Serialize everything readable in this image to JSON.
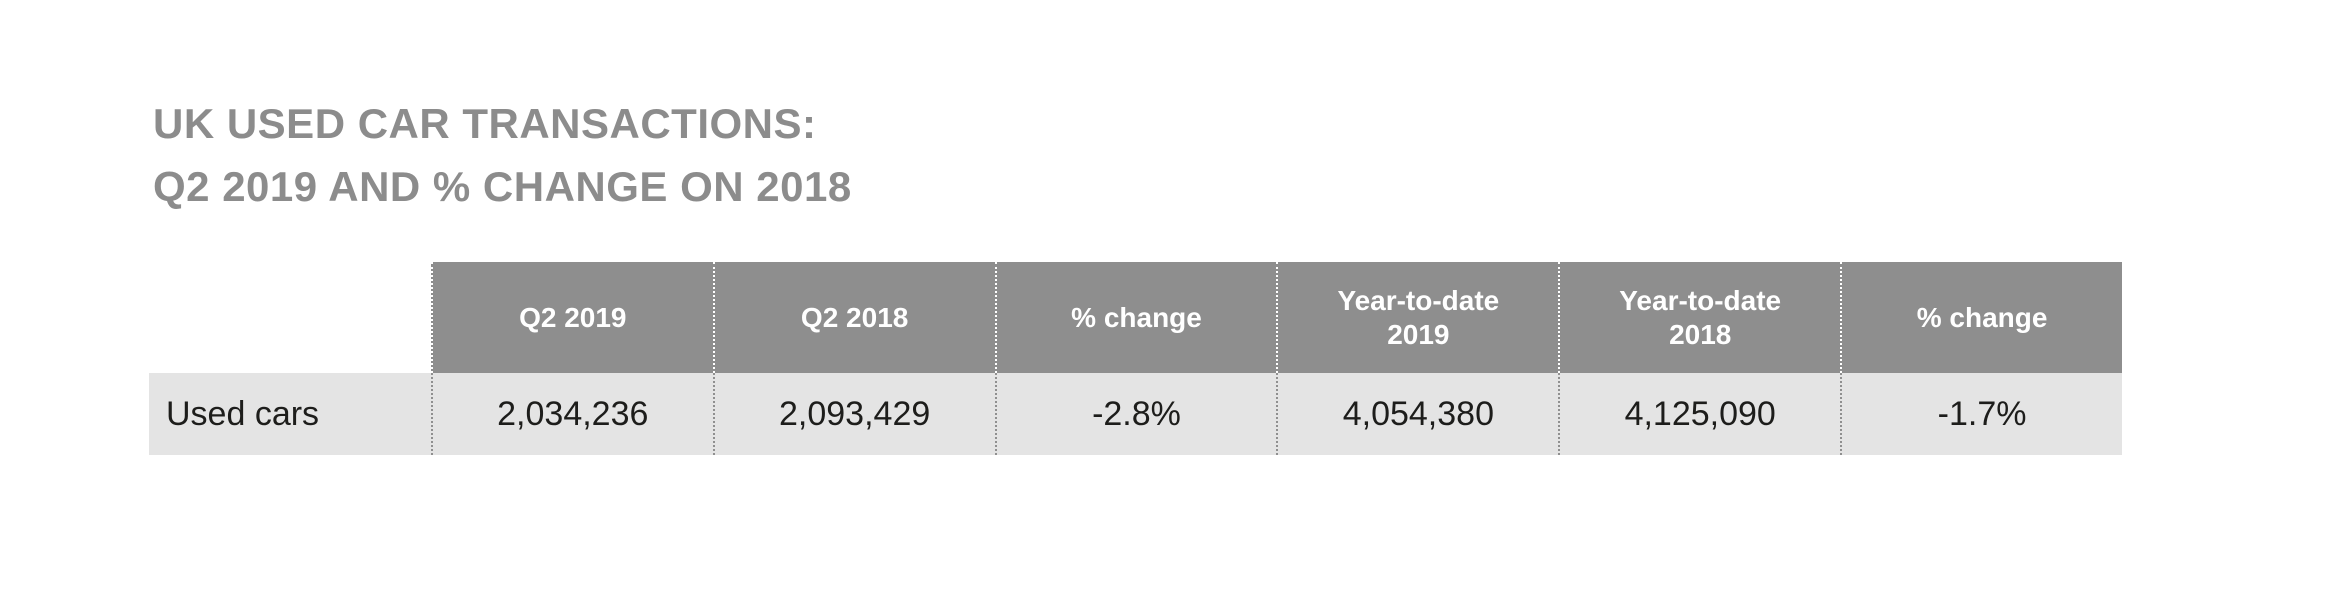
{
  "page": {
    "background": "#ffffff"
  },
  "title": {
    "line1": "UK USED CAR TRANSACTIONS:",
    "line2": "Q2 2019 AND % CHANGE ON 2018",
    "color": "#8c8c8c"
  },
  "table": {
    "header_bg": "#8e8e8e",
    "header_text_color": "#ffffff",
    "row_bg": "#e4e4e4",
    "row_text_color": "#1d1d1b",
    "divider_style": "dotted",
    "columns": [
      "",
      "Q2 2019",
      "Q2 2018",
      "% change",
      "Year-to-date 2019",
      "Year-to-date 2018",
      "% change"
    ],
    "rows": [
      {
        "label": "Used cars",
        "values": [
          "2,034,236",
          "2,093,429",
          "-2.8%",
          "4,054,380",
          "4,125,090",
          "-1.7%"
        ]
      }
    ]
  },
  "chart_data": {
    "type": "table",
    "title": "UK USED CAR TRANSACTIONS: Q2 2019 AND % CHANGE ON 2018",
    "columns": [
      "Q2 2019",
      "Q2 2018",
      "% change",
      "Year-to-date 2019",
      "Year-to-date 2018",
      "% change"
    ],
    "rows": [
      {
        "label": "Used cars",
        "q2_2019": 2034236,
        "q2_2018": 2093429,
        "pct_change_q2": -2.8,
        "ytd_2019": 4054380,
        "ytd_2018": 4125090,
        "pct_change_ytd": -1.7
      }
    ]
  }
}
